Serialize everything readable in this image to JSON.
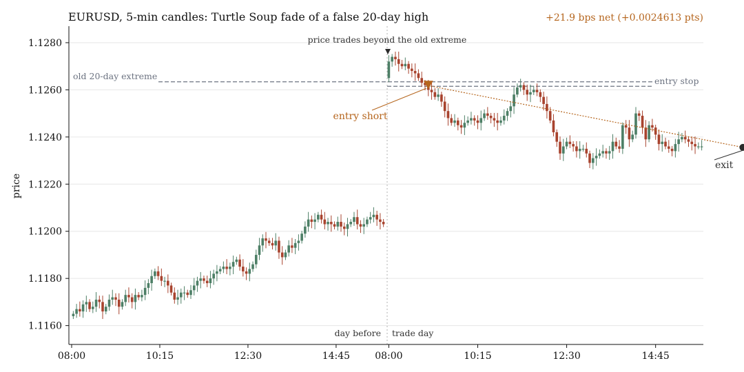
{
  "chart_data": {
    "type": "candlestick",
    "title": "EURUSD, 5-min candles: Turtle Soup fade of a false 20-day high",
    "pnl_label": "+21.9 bps net (+0.0024613 pts)",
    "ylabel": "price",
    "ylim": [
      1.1152,
      1.1287
    ],
    "y_ticks": [
      1.116,
      1.118,
      1.12,
      1.122,
      1.124,
      1.126,
      1.128
    ],
    "x_ticks": [
      "08:00",
      "10:15",
      "12:30",
      "14:45",
      "08:00",
      "10:15",
      "12:30",
      "14:45"
    ],
    "grid": "horizontal",
    "colors": {
      "up": "#4d7f66",
      "down": "#a8432e",
      "accent": "#b5651d",
      "reference": "#6b7280",
      "exit": "#2b2b2b"
    },
    "reference_levels": {
      "old_extreme": {
        "label": "old 20-day extreme",
        "value": 1.12634
      },
      "entry_stop": {
        "label": "entry stop",
        "value": 1.12615
      }
    },
    "session_labels": {
      "before": "day before",
      "after": "trade day"
    },
    "annotations": {
      "breakout": "price trades beyond the old extreme",
      "entry": "entry short",
      "exit": "exit"
    },
    "trade": {
      "entry": {
        "time": "09:00",
        "price": 1.12618
      },
      "exit": {
        "time": "17:00",
        "price": 1.12356
      }
    },
    "days": [
      {
        "name": "day before",
        "start": "08:00",
        "interval_min": 5,
        "open": 1.1164,
        "closes": [
          1.1165,
          1.1167,
          1.1166,
          1.1169,
          1.117,
          1.1167,
          1.1168,
          1.1171,
          1.117,
          1.1166,
          1.1168,
          1.1171,
          1.1172,
          1.1171,
          1.1168,
          1.117,
          1.1173,
          1.1172,
          1.117,
          1.1173,
          1.1172,
          1.1173,
          1.1176,
          1.1178,
          1.1181,
          1.1183,
          1.1181,
          1.1179,
          1.1179,
          1.1177,
          1.1174,
          1.1171,
          1.1172,
          1.1174,
          1.1174,
          1.1173,
          1.1175,
          1.1177,
          1.1179,
          1.118,
          1.1179,
          1.1178,
          1.118,
          1.1182,
          1.1183,
          1.1184,
          1.1185,
          1.1184,
          1.1185,
          1.1187,
          1.1188,
          1.1185,
          1.1183,
          1.1182,
          1.1184,
          1.1186,
          1.119,
          1.1194,
          1.1197,
          1.1196,
          1.1195,
          1.1194,
          1.1196,
          1.1191,
          1.1189,
          1.1191,
          1.1194,
          1.1193,
          1.1195,
          1.1196,
          1.1199,
          1.1202,
          1.1205,
          1.1204,
          1.1205,
          1.1207,
          1.1205,
          1.1203,
          1.1204,
          1.1203,
          1.1202,
          1.1204,
          1.1202,
          1.1201,
          1.1203,
          1.1204,
          1.1206,
          1.1203,
          1.1202,
          1.1203,
          1.1205,
          1.1206,
          1.1207,
          1.1205,
          1.1204,
          1.1203
        ]
      },
      {
        "name": "trade day",
        "start": "08:00",
        "interval_min": 5,
        "open": 1.1265,
        "closes": [
          1.1272,
          1.1274,
          1.1273,
          1.1271,
          1.127,
          1.1271,
          1.1269,
          1.1268,
          1.1267,
          1.1265,
          1.1263,
          1.1262,
          1.126,
          1.1259,
          1.1257,
          1.1258,
          1.1255,
          1.1251,
          1.1248,
          1.1246,
          1.1247,
          1.1245,
          1.1244,
          1.1246,
          1.1247,
          1.1248,
          1.1247,
          1.1246,
          1.1248,
          1.125,
          1.1249,
          1.1248,
          1.1247,
          1.1246,
          1.1247,
          1.1249,
          1.1251,
          1.1253,
          1.1258,
          1.1261,
          1.1262,
          1.126,
          1.1258,
          1.1259,
          1.126,
          1.1259,
          1.1257,
          1.1254,
          1.1251,
          1.1247,
          1.1242,
          1.1238,
          1.1233,
          1.1236,
          1.1238,
          1.1237,
          1.1236,
          1.1234,
          1.1235,
          1.1235,
          1.1233,
          1.1229,
          1.1231,
          1.1232,
          1.1233,
          1.1234,
          1.1233,
          1.1234,
          1.1238,
          1.1236,
          1.1235,
          1.1245,
          1.1244,
          1.1239,
          1.1241,
          1.125,
          1.1249,
          1.1244,
          1.1239,
          1.1245,
          1.1244,
          1.1241,
          1.1237,
          1.1238,
          1.1236,
          1.1235,
          1.1234,
          1.1237,
          1.1239,
          1.124,
          1.1239,
          1.1238,
          1.1237,
          1.1236,
          1.1236,
          1.1236
        ]
      }
    ]
  }
}
